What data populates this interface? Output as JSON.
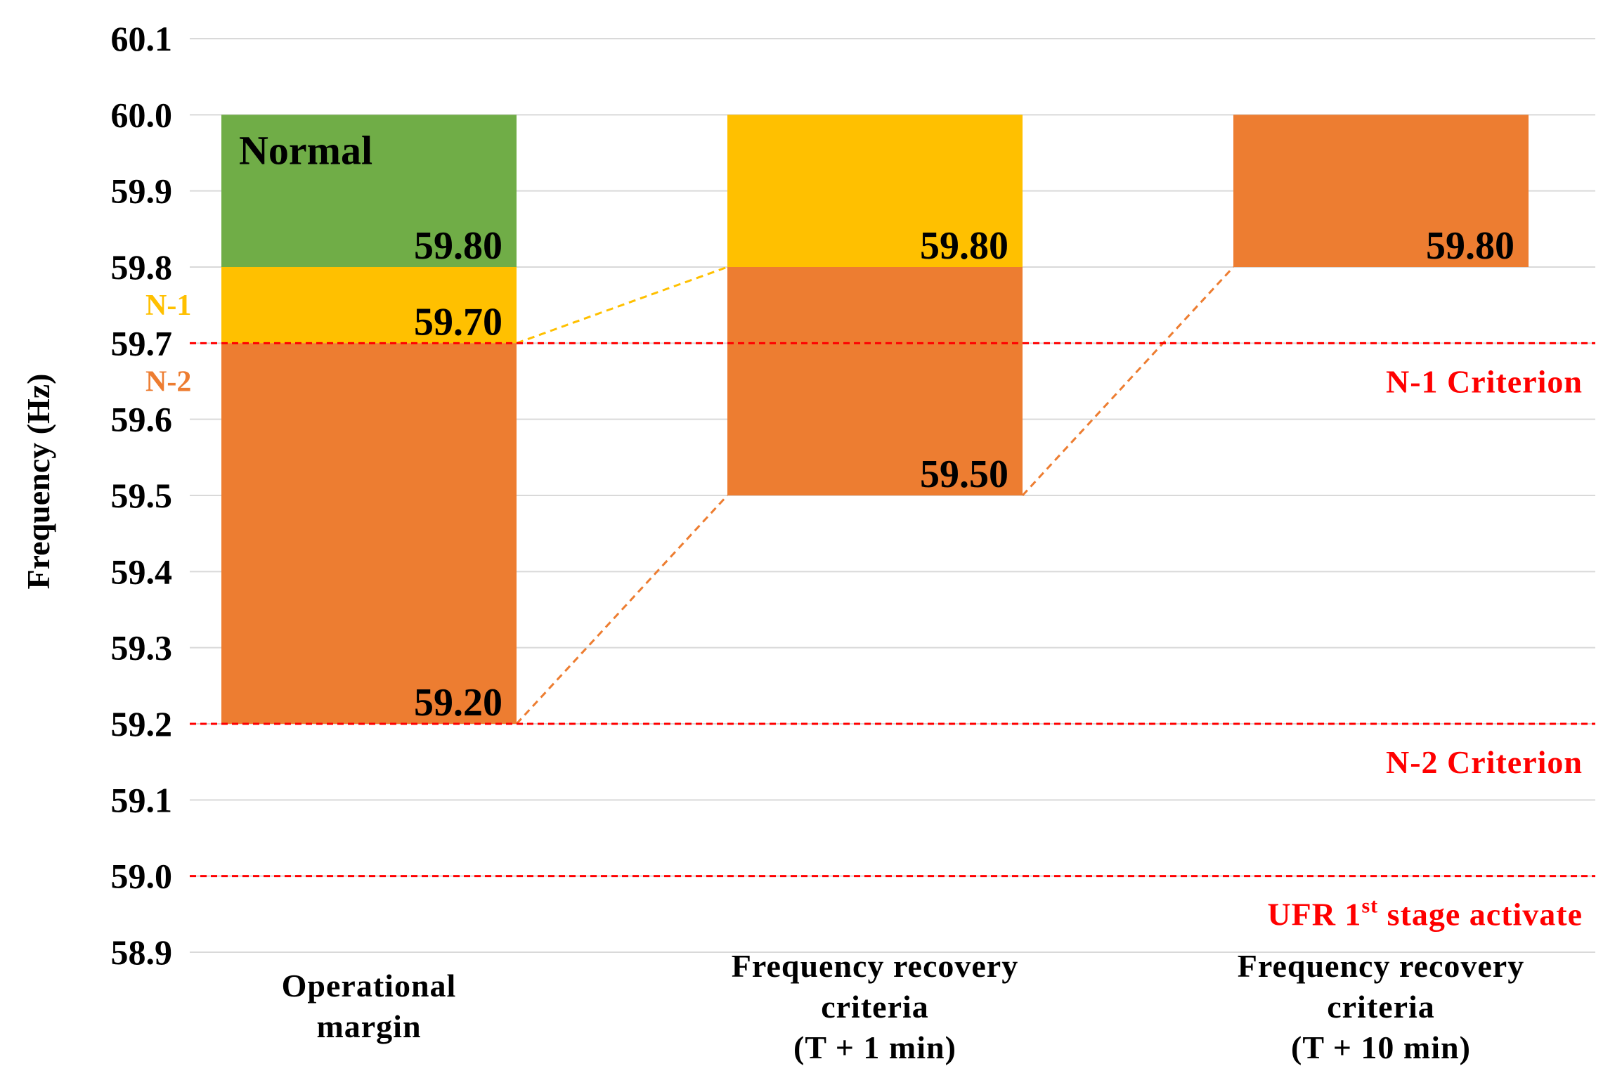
{
  "chart_data": {
    "type": "floating-bar",
    "ylabel": "Frequency (Hz)",
    "ylim": [
      58.9,
      60.1
    ],
    "yticks": [
      "60.1",
      "60.0",
      "59.9",
      "59.8",
      "59.7",
      "59.6",
      "59.5",
      "59.4",
      "59.3",
      "59.2",
      "59.1",
      "59.0",
      "58.9"
    ],
    "colors": {
      "green": "#70ad47",
      "yellow": "#ffc000",
      "orange": "#ed7d31",
      "red": "#ff0000",
      "grid": "#d9d9d9"
    },
    "categories": [
      {
        "lines": [
          "Operational",
          "margin"
        ]
      },
      {
        "lines": [
          "Frequency recovery",
          "criteria",
          "(T + 1 min)"
        ]
      },
      {
        "lines": [
          "Frequency recovery",
          "criteria",
          "(T + 10 min)"
        ]
      }
    ],
    "segments": [
      {
        "category": 0,
        "from": 59.8,
        "to": 60.0,
        "color": "green",
        "label": "59.80"
      },
      {
        "category": 0,
        "from": 59.7,
        "to": 59.8,
        "color": "yellow",
        "label": "59.70"
      },
      {
        "category": 0,
        "from": 59.2,
        "to": 59.7,
        "color": "orange",
        "label": "59.20"
      },
      {
        "category": 1,
        "from": 59.8,
        "to": 60.0,
        "color": "yellow",
        "label": "59.80"
      },
      {
        "category": 1,
        "from": 59.5,
        "to": 59.8,
        "color": "orange",
        "label": "59.50"
      },
      {
        "category": 2,
        "from": 59.8,
        "to": 60.0,
        "color": "orange",
        "label": "59.80"
      }
    ],
    "segment_annotation": {
      "text": "Normal",
      "category": 0,
      "value": 60.0
    },
    "side_labels": [
      {
        "text": "N-1",
        "value": 59.75,
        "color": "yellow"
      },
      {
        "text": "N-2",
        "value": 59.65,
        "color": "orange"
      }
    ],
    "criteria": [
      {
        "value": 59.7,
        "label": "N-1 Criterion"
      },
      {
        "value": 59.2,
        "label": "N-2 Criterion"
      },
      {
        "value": 59.0,
        "label": "UFR 1",
        "sup": "st",
        "suffix": " stage activate"
      }
    ],
    "connectors": [
      {
        "from_category": 0,
        "from_value": 59.7,
        "to_category": 1,
        "to_value": 59.8,
        "color": "yellow"
      },
      {
        "from_category": 0,
        "from_value": 59.2,
        "to_category": 1,
        "to_value": 59.5,
        "color": "orange"
      },
      {
        "from_category": 1,
        "from_value": 59.5,
        "to_category": 2,
        "to_value": 59.8,
        "color": "orange"
      }
    ]
  }
}
